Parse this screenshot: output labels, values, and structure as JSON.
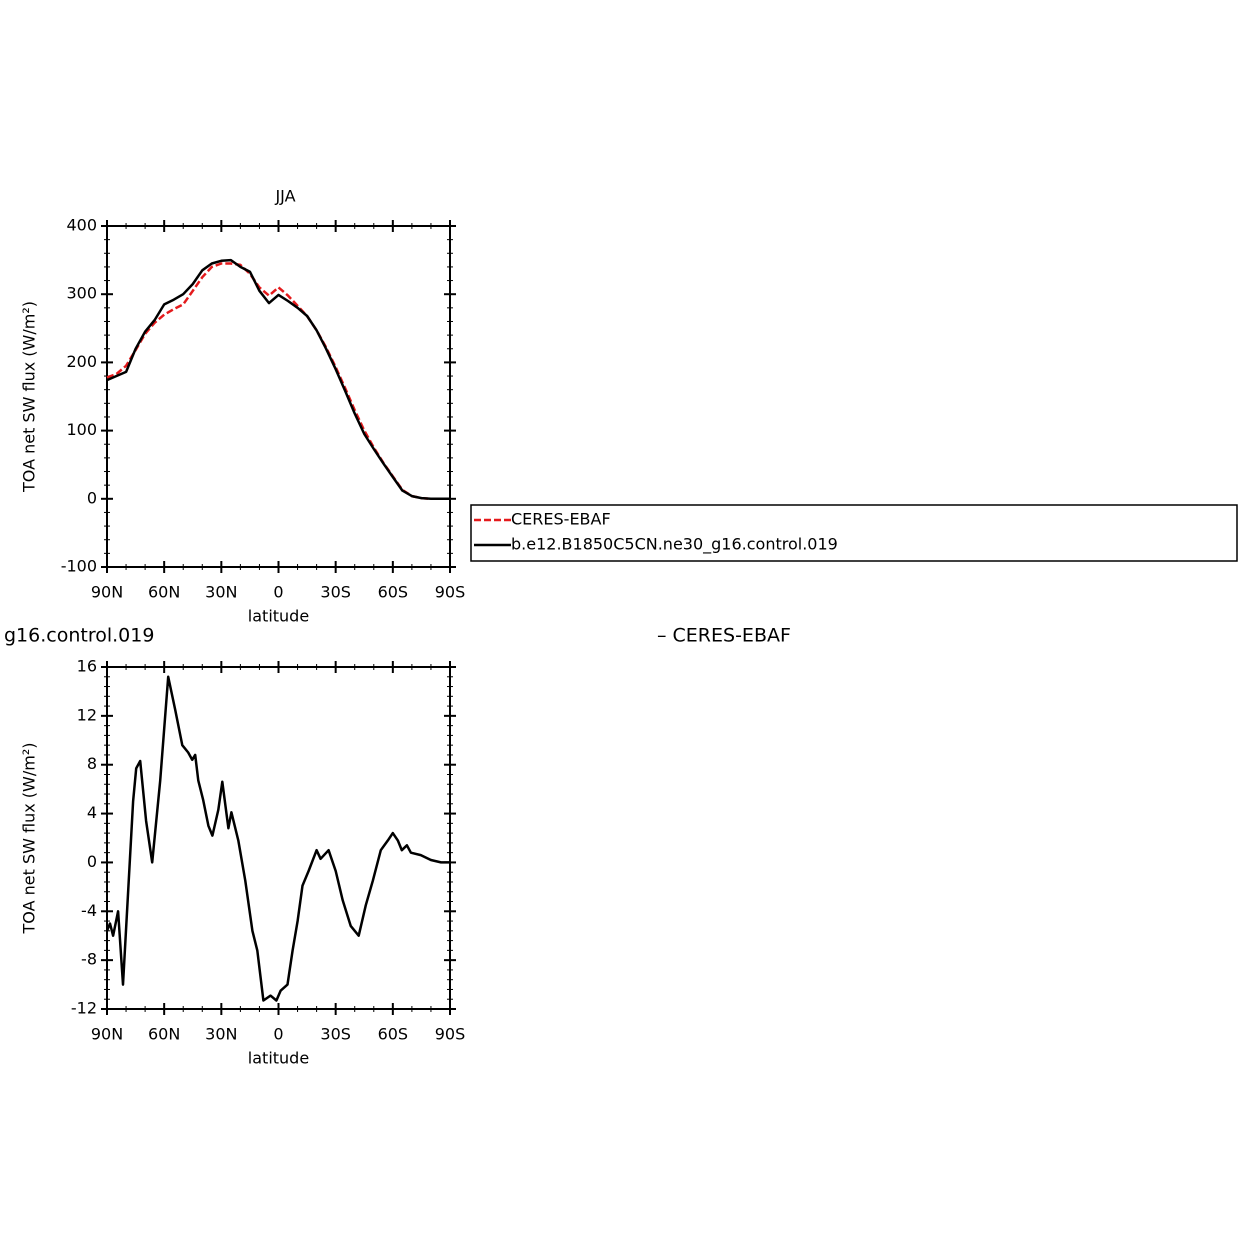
{
  "chart_data": [
    {
      "type": "line",
      "title": "JJA",
      "x_label": "latitude",
      "y_label": "TOA net SW flux (W/m²)",
      "x": [
        90,
        85,
        80,
        75,
        70,
        65,
        60,
        55,
        50,
        45,
        40,
        35,
        30,
        25,
        20,
        15,
        10,
        5,
        0,
        -5,
        -10,
        -15,
        -20,
        -25,
        -30,
        -35,
        -40,
        -45,
        -50,
        -55,
        -60,
        -65,
        -70,
        -75,
        -80,
        -85,
        -90
      ],
      "series": [
        {
          "name": "CERES-EBAF",
          "color": "#e41a1c",
          "dashed": true,
          "values": [
            178,
            183,
            195,
            218,
            242,
            258,
            270,
            278,
            285,
            305,
            325,
            340,
            345,
            345,
            343,
            330,
            310,
            298,
            310,
            298,
            283,
            268,
            247,
            222,
            193,
            162,
            130,
            100,
            75,
            53,
            33,
            13,
            4,
            1,
            0,
            0,
            0
          ]
        },
        {
          "name": "b.e12.B1850C5CN.ne30_g16.control.019",
          "color": "#000000",
          "dashed": false,
          "values": [
            174,
            180,
            186,
            220,
            245,
            262,
            285,
            292,
            300,
            315,
            335,
            345,
            349,
            350,
            340,
            333,
            305,
            287,
            299,
            290,
            280,
            268,
            247,
            220,
            190,
            158,
            125,
            95,
            73,
            52,
            32,
            12,
            4,
            1,
            0,
            0,
            0
          ]
        }
      ],
      "xlim": [
        90,
        -90
      ],
      "xticks": [
        {
          "value": 90,
          "label": "90N"
        },
        {
          "value": 60,
          "label": "60N"
        },
        {
          "value": 30,
          "label": "30N"
        },
        0,
        {
          "value": -30,
          "label": "30S"
        },
        {
          "value": -60,
          "label": "60S"
        },
        {
          "value": -90,
          "label": "90S"
        }
      ],
      "ylim": [
        -100,
        400
      ],
      "yticks": [
        -100,
        0,
        100,
        200,
        300,
        400
      ],
      "legend": "outside right"
    },
    {
      "type": "line",
      "title_fragments": [
        "g16.control.019",
        "– CERES-EBAF"
      ],
      "x_label": "latitude",
      "y_label": "TOA net SW flux (W/m²)",
      "x": [
        90,
        88.4,
        86.8,
        84.2,
        81.6,
        78.9,
        76.3,
        74.7,
        72.6,
        69.5,
        66.3,
        62.1,
        57.9,
        54.2,
        50.5,
        47.4,
        45.3,
        43.7,
        42.1,
        39.5,
        36.8,
        34.7,
        31.6,
        29.5,
        26.3,
        24.7,
        21.1,
        17.4,
        13.7,
        11.1,
        7.9,
        4.2,
        1.1,
        -1.1,
        -4.7,
        -7.4,
        -10,
        -12.6,
        -15.8,
        -20,
        -22.1,
        -26.3,
        -30,
        -33.7,
        -37.9,
        -42.1,
        -45.8,
        -49.5,
        -53.7,
        -57.4,
        -60,
        -62.6,
        -64.7,
        -67.4,
        -69.5,
        -74.7,
        -80,
        -85.3,
        -90
      ],
      "series": [
        {
          "name": null,
          "color": "#000000",
          "dashed": false,
          "values": [
            -5.6,
            -5,
            -6,
            -4,
            -10,
            -2.3,
            5,
            7.7,
            8.3,
            3.4,
            0,
            6.7,
            15.2,
            12.5,
            9.6,
            9,
            8.4,
            8.8,
            6.7,
            5.1,
            3,
            2.2,
            4.3,
            6.6,
            2.8,
            4.1,
            1.8,
            -1.5,
            -5.6,
            -7.2,
            -11.3,
            -10.9,
            -11.3,
            -10.5,
            -10,
            -7.2,
            -4.8,
            -1.9,
            -0.7,
            1,
            0.3,
            1,
            -0.7,
            -3.1,
            -5.2,
            -6,
            -3.5,
            -1.5,
            1,
            1.8,
            2.4,
            1.8,
            1,
            1.4,
            0.8,
            0.6,
            0.2,
            0,
            0
          ]
        }
      ],
      "xlim": [
        90,
        -90
      ],
      "xticks": [
        {
          "value": 90,
          "label": "90N"
        },
        {
          "value": 60,
          "label": "60N"
        },
        {
          "value": 30,
          "label": "30N"
        },
        0,
        {
          "value": -30,
          "label": "30S"
        },
        {
          "value": -60,
          "label": "60S"
        },
        {
          "value": -90,
          "label": "90S"
        }
      ],
      "ylim": [
        -12,
        16
      ],
      "yticks": [
        -12,
        -8,
        -4,
        0,
        4,
        8,
        12,
        16
      ]
    }
  ]
}
